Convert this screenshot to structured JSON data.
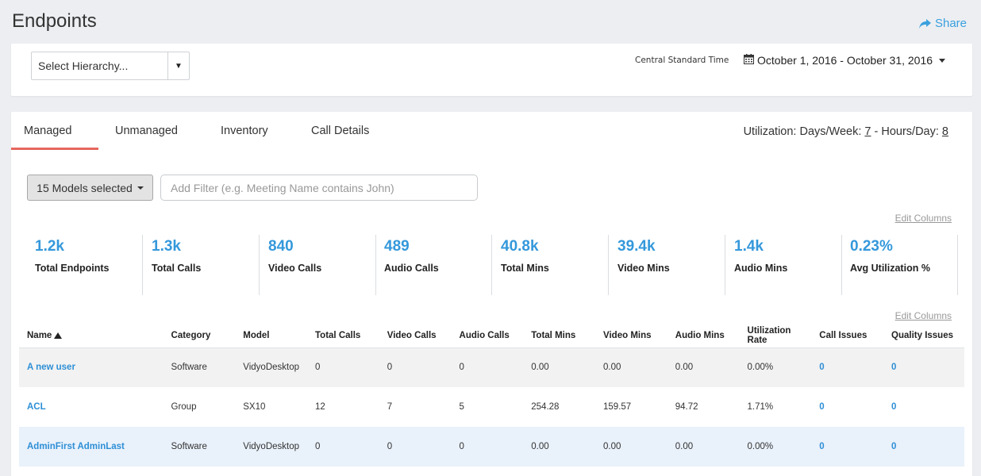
{
  "page": {
    "title": "Endpoints",
    "share_label": "Share"
  },
  "filters": {
    "hierarchy_placeholder": "Select Hierarchy...",
    "timezone": "Central Standard Time",
    "date_range": "October 1, 2016 - October 31, 2016"
  },
  "tabs": [
    {
      "label": "Managed",
      "active": true
    },
    {
      "label": "Unmanaged"
    },
    {
      "label": "Inventory"
    },
    {
      "label": "Call Details"
    }
  ],
  "utilization": {
    "prefix": "Utilization: Days/Week: ",
    "days": "7",
    "middle": " - Hours/Day: ",
    "hours": "8"
  },
  "models_button": "15 Models selected",
  "filter_placeholder": "Add Filter (e.g. Meeting Name contains John)",
  "edit_columns": "Edit Columns",
  "stats": [
    {
      "value": "1.2k",
      "label": "Total Endpoints"
    },
    {
      "value": "1.3k",
      "label": "Total Calls"
    },
    {
      "value": "840",
      "label": "Video Calls"
    },
    {
      "value": "489",
      "label": "Audio Calls"
    },
    {
      "value": "40.8k",
      "label": "Total Mins"
    },
    {
      "value": "39.4k",
      "label": "Video Mins"
    },
    {
      "value": "1.4k",
      "label": "Audio Mins"
    },
    {
      "value": "0.23%",
      "label": "Avg Utilization %"
    }
  ],
  "table": {
    "columns": [
      "Name",
      "Category",
      "Model",
      "Total Calls",
      "Video Calls",
      "Audio Calls",
      "Total Mins",
      "Video Mins",
      "Audio Mins",
      "Utilization Rate",
      "Call Issues",
      "Quality Issues"
    ],
    "rows": [
      [
        "A new user",
        "Software",
        "VidyoDesktop",
        "0",
        "0",
        "0",
        "0.00",
        "0.00",
        "0.00",
        "0.00%",
        "0",
        "0"
      ],
      [
        "ACL",
        "Group",
        "SX10",
        "12",
        "7",
        "5",
        "254.28",
        "159.57",
        "94.72",
        "1.71%",
        "0",
        "0"
      ],
      [
        "AdminFirst AdminLast",
        "Software",
        "VidyoDesktop",
        "0",
        "0",
        "0",
        "0.00",
        "0.00",
        "0.00",
        "0.00%",
        "0",
        "0"
      ]
    ]
  },
  "colors": {
    "accent": "#3498db",
    "tab_underline": "#e5675d",
    "share": "#3aa0de"
  }
}
